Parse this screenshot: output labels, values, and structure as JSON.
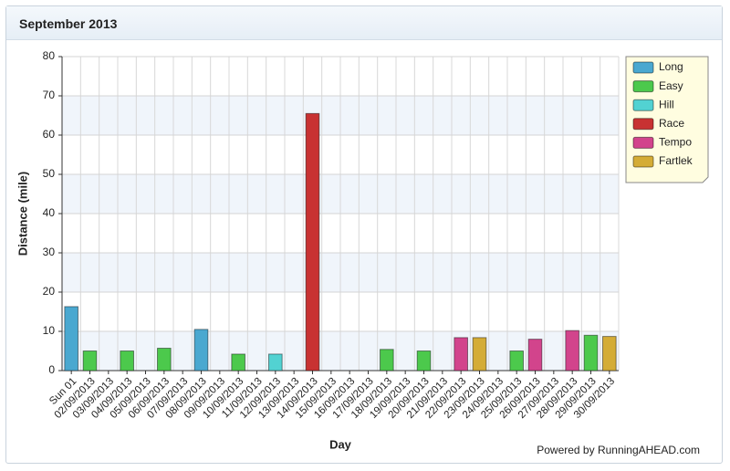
{
  "header": {
    "title": "September 2013"
  },
  "chart_data": {
    "type": "bar",
    "stacked": true,
    "x_label": "Day",
    "y_label": "Distance (mile)",
    "footer": "Powered by RunningAHEAD.com",
    "categories": [
      "Sun 01",
      "02/09/2013",
      "03/09/2013",
      "04/09/2013",
      "05/09/2013",
      "06/09/2013",
      "07/09/2013",
      "08/09/2013",
      "09/09/2013",
      "10/09/2013",
      "11/09/2013",
      "12/09/2013",
      "13/09/2013",
      "14/09/2013",
      "15/09/2013",
      "16/09/2013",
      "17/09/2013",
      "18/09/2013",
      "19/09/2013",
      "20/09/2013",
      "21/09/2013",
      "22/09/2013",
      "23/09/2013",
      "24/09/2013",
      "25/09/2013",
      "26/09/2013",
      "27/09/2013",
      "28/09/2013",
      "29/09/2013",
      "30/09/2013"
    ],
    "series": [
      {
        "name": "Long",
        "color": "#4aa8d0",
        "values": [
          16.3,
          null,
          null,
          null,
          null,
          null,
          null,
          10.5,
          null,
          null,
          null,
          null,
          null,
          null,
          null,
          null,
          null,
          null,
          null,
          null,
          null,
          null,
          null,
          null,
          null,
          null,
          null,
          null,
          null,
          null
        ]
      },
      {
        "name": "Easy",
        "color": "#4cc94c",
        "values": [
          null,
          5,
          null,
          5,
          null,
          5.7,
          null,
          null,
          null,
          4.2,
          null,
          null,
          null,
          null,
          null,
          null,
          null,
          5.4,
          null,
          5,
          null,
          null,
          null,
          null,
          5,
          null,
          null,
          null,
          9,
          null
        ]
      },
      {
        "name": "Hill",
        "color": "#52d2d2",
        "values": [
          null,
          null,
          null,
          null,
          null,
          null,
          null,
          null,
          null,
          null,
          null,
          4.2,
          null,
          null,
          null,
          null,
          null,
          null,
          null,
          null,
          null,
          null,
          null,
          null,
          null,
          null,
          null,
          null,
          null,
          null
        ]
      },
      {
        "name": "Race",
        "color": "#c83232",
        "values": [
          null,
          null,
          null,
          null,
          null,
          null,
          null,
          null,
          null,
          null,
          null,
          null,
          null,
          65.5,
          null,
          null,
          null,
          null,
          null,
          null,
          null,
          null,
          null,
          null,
          null,
          null,
          null,
          null,
          null,
          null
        ]
      },
      {
        "name": "Tempo",
        "color": "#d2448c",
        "values": [
          null,
          null,
          null,
          null,
          null,
          null,
          null,
          null,
          null,
          null,
          null,
          null,
          null,
          null,
          null,
          null,
          null,
          null,
          null,
          null,
          null,
          8.4,
          null,
          null,
          null,
          8,
          null,
          10.2,
          null,
          null
        ]
      },
      {
        "name": "Fartlek",
        "color": "#d4ac36",
        "values": [
          null,
          null,
          null,
          null,
          null,
          null,
          null,
          null,
          null,
          null,
          null,
          null,
          null,
          null,
          null,
          null,
          null,
          null,
          null,
          null,
          null,
          null,
          8.4,
          null,
          null,
          null,
          null,
          null,
          null,
          8.7
        ]
      }
    ],
    "ylim": [
      0,
      80
    ],
    "yticks": [
      0,
      10,
      20,
      30,
      40,
      50,
      60,
      70,
      80
    ],
    "grid": true,
    "legend": "top-right"
  }
}
